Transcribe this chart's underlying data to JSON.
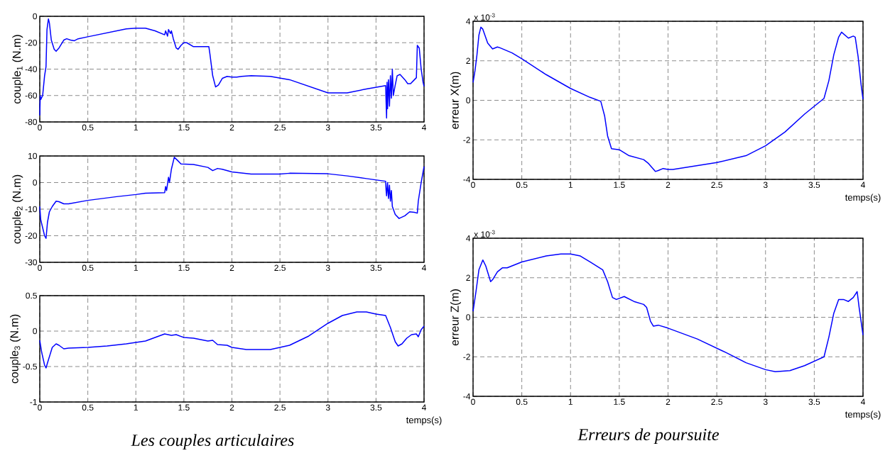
{
  "chart_data": [
    {
      "type": "line",
      "ylabel": "couple$_{1}$ (N.m)",
      "color": "#0000ff",
      "line_style": "solid",
      "grid": true,
      "xlim": [
        0,
        4
      ],
      "xticks": [
        0,
        0.5,
        1,
        1.5,
        2,
        2.5,
        3,
        3.5,
        4
      ],
      "ylim": [
        -80,
        0
      ],
      "yticks": [
        -80,
        -60,
        -40,
        -20,
        0
      ],
      "x": [
        0,
        0.005,
        0.01,
        0.03,
        0.05,
        0.065,
        0.075,
        0.09,
        0.1,
        0.12,
        0.15,
        0.17,
        0.2,
        0.25,
        0.28,
        0.32,
        0.36,
        0.4,
        0.5,
        0.7,
        0.9,
        1.0,
        1.1,
        1.2,
        1.3,
        1.31,
        1.33,
        1.34,
        1.36,
        1.37,
        1.39,
        1.42,
        1.44,
        1.47,
        1.5,
        1.53,
        1.6,
        1.7,
        1.76,
        1.77,
        1.8,
        1.83,
        1.86,
        1.9,
        1.95,
        2.0,
        2.05,
        2.1,
        2.2,
        2.4,
        2.6,
        2.8,
        3.0,
        3.2,
        3.4,
        3.6,
        3.605,
        3.61,
        3.615,
        3.62,
        3.63,
        3.64,
        3.65,
        3.66,
        3.67,
        3.68,
        3.7,
        3.72,
        3.75,
        3.8,
        3.83,
        3.86,
        3.9,
        3.92,
        3.93,
        3.95,
        3.97,
        3.99,
        4.0
      ],
      "values": [
        -75,
        -60,
        -63,
        -60,
        -45,
        -38,
        -10,
        -2,
        -5,
        -18,
        -25,
        -26.5,
        -24,
        -18,
        -17,
        -18,
        -18.5,
        -17,
        -15.5,
        -12.5,
        -9.5,
        -9,
        -9,
        -11,
        -14,
        -11,
        -15,
        -10,
        -13,
        -11,
        -17,
        -24,
        -25,
        -22,
        -20,
        -20,
        -23,
        -23,
        -23,
        -28,
        -45,
        -53.5,
        -52,
        -47,
        -45.5,
        -46,
        -46,
        -45.5,
        -45,
        -45.5,
        -48,
        -53,
        -58,
        -58,
        -55,
        -52.5,
        -65,
        -77,
        -50,
        -70,
        -48,
        -68,
        -45,
        -62,
        -40,
        -60,
        -52,
        -45,
        -44,
        -48,
        -51,
        -51,
        -48,
        -46.5,
        -22,
        -24,
        -40,
        -50,
        -53
      ]
    },
    {
      "type": "line",
      "ylabel": "couple$_{2}$ (N.m)",
      "color": "#0000ff",
      "line_style": "solid",
      "grid": true,
      "xlim": [
        0,
        4
      ],
      "xticks": [
        0,
        0.5,
        1,
        1.5,
        2,
        2.5,
        3,
        3.5,
        4
      ],
      "ylim": [
        -30,
        10
      ],
      "yticks": [
        -30,
        -20,
        -10,
        0,
        10
      ],
      "x": [
        0,
        0.01,
        0.03,
        0.05,
        0.065,
        0.08,
        0.1,
        0.13,
        0.17,
        0.2,
        0.25,
        0.3,
        0.5,
        0.8,
        1.0,
        1.1,
        1.3,
        1.31,
        1.32,
        1.34,
        1.35,
        1.37,
        1.4,
        1.43,
        1.47,
        1.6,
        1.75,
        1.8,
        1.85,
        1.9,
        2.0,
        2.2,
        2.5,
        2.6,
        3.0,
        3.2,
        3.4,
        3.6,
        3.605,
        3.61,
        3.62,
        3.63,
        3.64,
        3.65,
        3.66,
        3.67,
        3.7,
        3.74,
        3.8,
        3.85,
        3.9,
        3.93,
        3.94,
        3.97,
        4.0
      ],
      "values": [
        -9,
        -14,
        -17,
        -20,
        -21,
        -15,
        -11,
        -9,
        -7,
        -7.2,
        -8,
        -8,
        -6.7,
        -5.3,
        -4.5,
        -4,
        -3.8,
        -1.5,
        -3,
        2,
        0,
        5,
        9.5,
        8.5,
        7,
        6.8,
        5.7,
        4.5,
        5.3,
        5,
        4,
        3.2,
        3.2,
        3.5,
        3.3,
        2.5,
        1.5,
        0.5,
        -3,
        -5,
        0,
        -6,
        -1,
        -7,
        -3,
        -9,
        -12,
        -13.5,
        -12.5,
        -11,
        -11.2,
        -11.5,
        -7,
        0,
        6
      ]
    },
    {
      "type": "line",
      "ylabel": "couple$_{3}$ (N.m)",
      "xlabel": "temps(s)",
      "color": "#0000ff",
      "line_style": "solid",
      "grid": true,
      "annotations": [
        "Les couples articulaires"
      ],
      "xlim": [
        0,
        4
      ],
      "xticks": [
        0,
        0.5,
        1,
        1.5,
        2,
        2.5,
        3,
        3.5,
        4
      ],
      "ylim": [
        -1,
        0.5
      ],
      "yticks": [
        -1,
        -0.5,
        0,
        0.5
      ],
      "x": [
        0,
        0.02,
        0.05,
        0.065,
        0.08,
        0.13,
        0.17,
        0.2,
        0.25,
        0.3,
        0.5,
        0.7,
        0.9,
        1.0,
        1.1,
        1.2,
        1.3,
        1.37,
        1.42,
        1.5,
        1.6,
        1.75,
        1.8,
        1.85,
        1.95,
        2.0,
        2.15,
        2.4,
        2.6,
        2.8,
        3.0,
        3.15,
        3.3,
        3.4,
        3.5,
        3.6,
        3.65,
        3.7,
        3.73,
        3.77,
        3.82,
        3.87,
        3.92,
        3.94,
        3.97,
        4.0
      ],
      "values": [
        -0.13,
        -0.3,
        -0.48,
        -0.52,
        -0.45,
        -0.23,
        -0.18,
        -0.2,
        -0.25,
        -0.24,
        -0.23,
        -0.21,
        -0.18,
        -0.16,
        -0.14,
        -0.09,
        -0.04,
        -0.06,
        -0.05,
        -0.09,
        -0.1,
        -0.14,
        -0.13,
        -0.19,
        -0.2,
        -0.23,
        -0.26,
        -0.26,
        -0.2,
        -0.07,
        0.11,
        0.22,
        0.27,
        0.27,
        0.24,
        0.22,
        0.05,
        -0.15,
        -0.21,
        -0.18,
        -0.1,
        -0.05,
        -0.04,
        -0.08,
        0.02,
        0.07
      ]
    },
    {
      "type": "line",
      "ylabel": "erreur X(m)",
      "xlabel": "temps(s)",
      "color": "#0000ff",
      "line_style": "solid",
      "grid": true,
      "annotations": [
        "x 10$^{-3}$"
      ],
      "xlim": [
        0,
        4
      ],
      "xticks": [
        0,
        0.5,
        1,
        1.5,
        2,
        2.5,
        3,
        3.5,
        4
      ],
      "ylim": [
        -4,
        4
      ],
      "yticks": [
        -4,
        -2,
        0,
        2,
        4
      ],
      "x": [
        0,
        0.02,
        0.04,
        0.06,
        0.08,
        0.1,
        0.15,
        0.2,
        0.25,
        0.28,
        0.4,
        0.5,
        0.75,
        1.0,
        1.2,
        1.31,
        1.35,
        1.38,
        1.42,
        1.5,
        1.6,
        1.75,
        1.8,
        1.87,
        1.9,
        1.95,
        2.0,
        2.05,
        2.5,
        2.8,
        3.0,
        3.2,
        3.4,
        3.6,
        3.65,
        3.7,
        3.75,
        3.78,
        3.85,
        3.9,
        3.92,
        3.95,
        3.98,
        4.0
      ],
      "values": [
        0.9,
        1.5,
        2.3,
        3.3,
        3.7,
        3.6,
        2.9,
        2.6,
        2.7,
        2.65,
        2.4,
        2.1,
        1.3,
        0.6,
        0.15,
        -0.05,
        -0.8,
        -1.8,
        -2.45,
        -2.5,
        -2.8,
        -3.0,
        -3.2,
        -3.6,
        -3.55,
        -3.45,
        -3.5,
        -3.5,
        -3.15,
        -2.8,
        -2.3,
        -1.6,
        -0.7,
        0.1,
        1.0,
        2.3,
        3.2,
        3.45,
        3.15,
        3.25,
        3.2,
        2.2,
        0.8,
        0.05
      ]
    },
    {
      "type": "line",
      "ylabel": "erreur Z(m)",
      "xlabel": "temps(s)",
      "color": "#0000ff",
      "line_style": "solid",
      "grid": true,
      "annotations": [
        "x 10$^{-3}$",
        "Erreurs de poursuite"
      ],
      "xlim": [
        0,
        4
      ],
      "xticks": [
        0,
        0.5,
        1,
        1.5,
        2,
        2.5,
        3,
        3.5,
        4
      ],
      "ylim": [
        -4,
        4
      ],
      "yticks": [
        -4,
        -2,
        0,
        2,
        4
      ],
      "x": [
        0,
        0.03,
        0.06,
        0.1,
        0.13,
        0.18,
        0.2,
        0.25,
        0.3,
        0.35,
        0.5,
        0.75,
        0.9,
        1.0,
        1.1,
        1.2,
        1.33,
        1.38,
        1.43,
        1.47,
        1.55,
        1.65,
        1.75,
        1.78,
        1.82,
        1.85,
        1.9,
        2.0,
        2.3,
        2.6,
        2.8,
        3.0,
        3.1,
        3.25,
        3.4,
        3.6,
        3.65,
        3.7,
        3.75,
        3.8,
        3.85,
        3.9,
        3.94,
        3.96,
        4.0
      ],
      "values": [
        0.3,
        1.3,
        2.4,
        2.9,
        2.6,
        1.8,
        1.9,
        2.3,
        2.5,
        2.5,
        2.8,
        3.1,
        3.2,
        3.2,
        3.1,
        2.8,
        2.4,
        1.8,
        1.0,
        0.9,
        1.05,
        0.8,
        0.65,
        0.5,
        -0.2,
        -0.45,
        -0.4,
        -0.55,
        -1.1,
        -1.8,
        -2.3,
        -2.65,
        -2.75,
        -2.7,
        -2.45,
        -2.0,
        -1.0,
        0.2,
        0.9,
        0.9,
        0.8,
        1.0,
        1.3,
        0.5,
        -0.9
      ]
    }
  ]
}
